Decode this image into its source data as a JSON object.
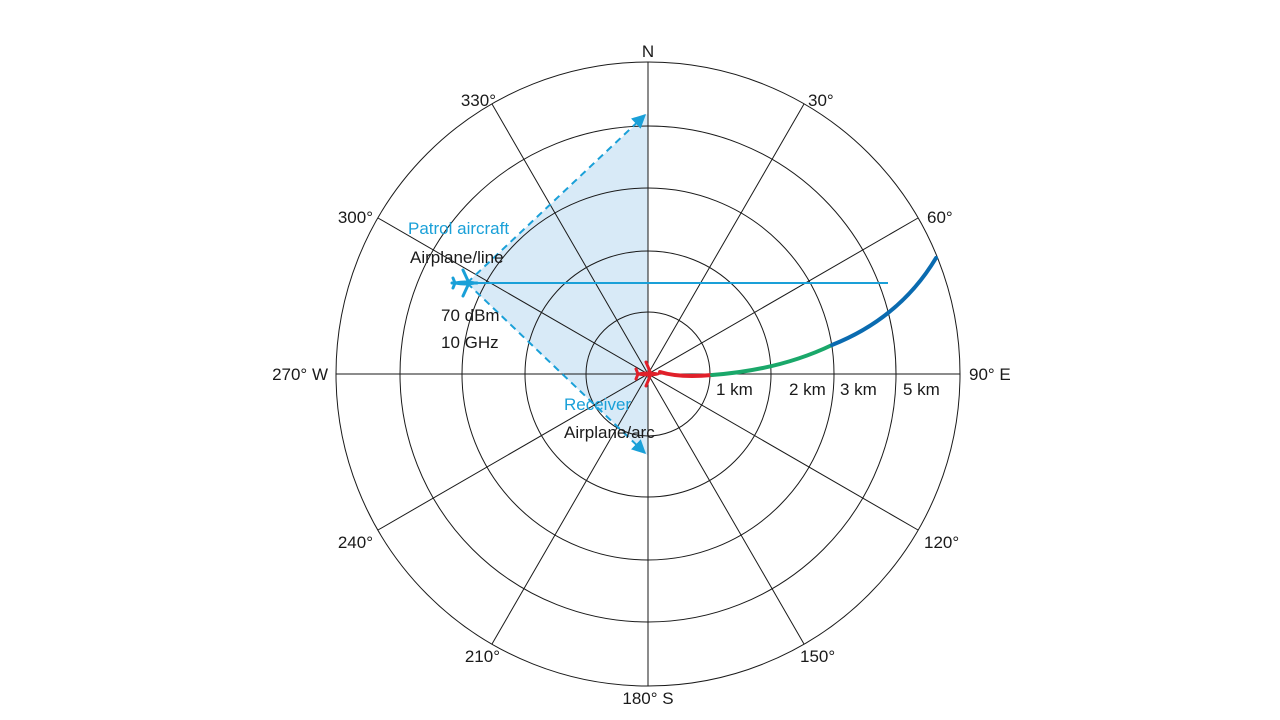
{
  "compass": {
    "north": "N",
    "east": "90° E",
    "south": "180° S",
    "west": "270° W",
    "deg30": "30°",
    "deg60": "60°",
    "deg120": "120°",
    "deg150": "150°",
    "deg210": "210°",
    "deg240": "240°",
    "deg300": "300°",
    "deg330": "330°"
  },
  "ranges": {
    "r1": "1 km",
    "r2": "2 km",
    "r3": "3 km",
    "r5": "5 km"
  },
  "patrol": {
    "name": "Patrol aircraft",
    "model": "Airplane/line",
    "power": "70 dBm",
    "frequency": "10 GHz"
  },
  "receiver": {
    "name": "Receiver",
    "model": "Airplane/arc"
  },
  "colors": {
    "patrol": "#1aa0d8",
    "sector_fill": "#d8eaf7",
    "receiver": "#e0202a",
    "arc_near": "#e0202a",
    "arc_mid": "#1aa86a",
    "arc_far": "#0a6bb0",
    "grid": "#1a1a1a"
  }
}
